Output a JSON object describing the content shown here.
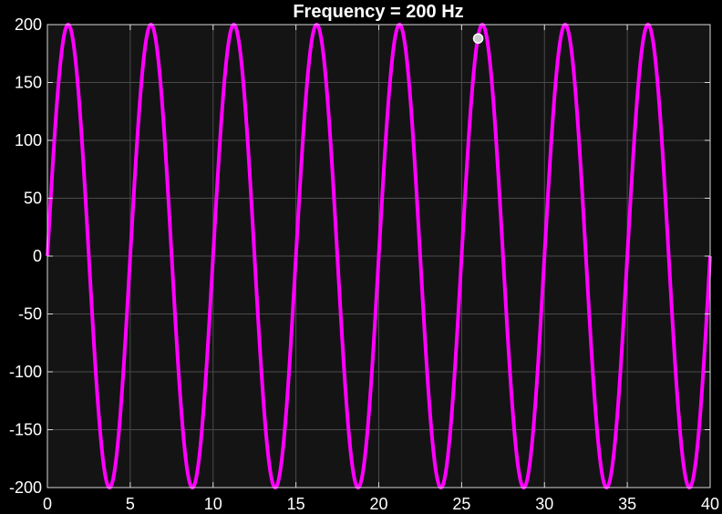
{
  "chart_data": {
    "type": "line",
    "title": "Frequency = 200 Hz",
    "xlabel": "",
    "ylabel": "",
    "xlim": [
      0,
      40
    ],
    "ylim": [
      -200,
      200
    ],
    "x_ticks": [
      0,
      5,
      10,
      15,
      20,
      25,
      30,
      35,
      40
    ],
    "y_ticks": [
      200,
      150,
      100,
      50,
      0,
      -50,
      -100,
      -150,
      -200
    ],
    "grid": true,
    "series": [
      {
        "amplitude": 200,
        "period": 5,
        "x_start": 0,
        "x_end": 40,
        "color": "#ff00ff"
      }
    ],
    "marker": {
      "x": 26,
      "y": 188,
      "color": "#cccccc"
    }
  },
  "colors": {
    "background": "#000000",
    "plot_area": "#141414",
    "grid": "#4a4a4a",
    "axes": "#d9d9d9",
    "text": "#ffffff"
  }
}
